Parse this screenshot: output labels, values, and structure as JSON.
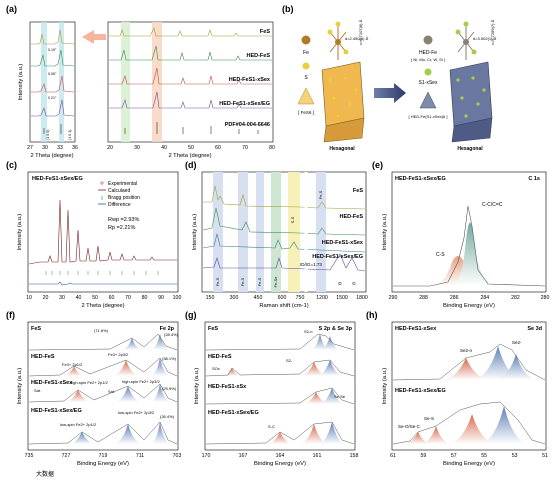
{
  "panels": {
    "a": {
      "label": "(a)",
      "series_labels": [
        "FeS",
        "HED-FeS",
        "HED-FeS1-xSex",
        "HED-FeS1-xSex/EG",
        "PDF#04-004-6646"
      ],
      "inset_xlabel": "2 Theta (degree)",
      "inset_ticks": [
        "27",
        "30",
        "33",
        "36"
      ],
      "main_xlabel": "2 Theta (degree)",
      "main_ticks": [
        "20",
        "30",
        "40",
        "50",
        "60",
        "70",
        "80"
      ],
      "ylabel": "Intensity (a.u.)",
      "inset_peak_labels": [
        "(1 0 0)",
        "(1 0 1)"
      ],
      "shift_labels": [
        "0.19°",
        "0.06°",
        "0.21°"
      ]
    },
    "b": {
      "label": "(b)",
      "left_atoms": [
        "Fe",
        "S"
      ],
      "left_formula": "[ FeS6 ]",
      "left_bond": "d=2.450(4) Å",
      "left_cdim": "c=5.7107(8) Å",
      "left_caption": "Hexagonal",
      "right_atoms": [
        "HED-Fe",
        "( Ni, Mo, Cr, W, Si )",
        "S1-xSex"
      ],
      "right_formula": "[ HED-Fe(S1-xSex)6 ]",
      "right_bond": "d=3.502(1) Å",
      "right_cdim": "c=5.7289(7) Å",
      "right_caption": "Hexagonal"
    },
    "c": {
      "label": "(c)",
      "title": "HED-FeS1-xSex/EG",
      "legend": [
        "Experimental",
        "Calculaed",
        "Bragg position",
        "Difference"
      ],
      "rwp": "Rwp =2.93%",
      "rp": "Rp =2.21%",
      "xlabel": "2 Theta (degree)",
      "ylabel": "Intensity (a.u.)",
      "ticks": [
        "10",
        "20",
        "30",
        "40",
        "50",
        "60",
        "70",
        "80",
        "90",
        "100"
      ]
    },
    "d": {
      "label": "(d)",
      "series_labels": [
        "FeS",
        "HED-FeS",
        "HED-FeS1-xSex",
        "HED-FeS1-xSex/EG"
      ],
      "band_labels": [
        "Fe-S",
        "Fe-S",
        "Fe-S",
        "Fe-Se",
        "S-S",
        "Fe-S"
      ],
      "id_ig": "ID/IG=1.73",
      "d_label": "D",
      "g_label": "G",
      "xlabel": "Raman shift (cm-1)",
      "ylabel": "Intensity (a.u.)",
      "ticks": [
        "150",
        "300",
        "450",
        "600",
        "750",
        "1200",
        "1500",
        "1800"
      ]
    },
    "e": {
      "label": "(e)",
      "title": "HED-FeS1-xSex/EG",
      "tag": "C 1s",
      "peaks": [
        "C-C/C=C",
        "C-S"
      ],
      "xlabel": "Binding Energy (eV)",
      "ylabel": "Intensity (a.u.)",
      "ticks": [
        "290",
        "288",
        "286",
        "284",
        "282",
        "280"
      ]
    },
    "f": {
      "label": "(f)",
      "tag": "Fe 2p",
      "series_labels": [
        "FeS",
        "HED-FeS",
        "HED-FeS1-xSex",
        "HED-FeS1-xSex/EG"
      ],
      "annotations": [
        "(71.6%)",
        "(28.4%)",
        "Fe3+ 2p1/2",
        "Fe3+ 2p3/2",
        "(38.1%)",
        "Sat.",
        "Sat.",
        "high-spin Fe2+ 2p1/2",
        "high-spin Fe2+ 2p3/2",
        "(29.9%)",
        "low-spin Fe2+ 2p3/2",
        "low-spin Fe2+ 2p1/2",
        "(26.4%)"
      ],
      "xlabel": "Binding Energy (eV)",
      "ylabel": "Intensity (a.u.)",
      "ticks": [
        "735",
        "727",
        "719",
        "711",
        "703"
      ]
    },
    "g": {
      "label": "(g)",
      "tag": "S 2p & Se 3p",
      "series_labels": [
        "FeS",
        "HED-FeS",
        "HED-FeS1-xSx",
        "HED-FeS1-xSex/EG"
      ],
      "annotations": [
        "S2-n",
        "S2-",
        "SOx",
        "Se-Se",
        "S-C"
      ],
      "xlabel": "Binding Energy (eV)",
      "ylabel": "Intensity (a.u.)",
      "ticks": [
        "170",
        "167",
        "164",
        "161",
        "158"
      ]
    },
    "h": {
      "label": "(h)",
      "tag": "Se 3d",
      "series_labels": [
        "HED-FeS1-xSex",
        "HED-FeS1-xSex/EG"
      ],
      "annotations": [
        "Se2-n",
        "Se2-",
        "Se-S",
        "Se-O/Se-C"
      ],
      "xlabel": "Binding Energy (eV)",
      "ylabel": "Intensity (a.u.)",
      "ticks": [
        "61",
        "59",
        "57",
        "55",
        "53",
        "51"
      ]
    }
  },
  "watermark": "大数据"
}
